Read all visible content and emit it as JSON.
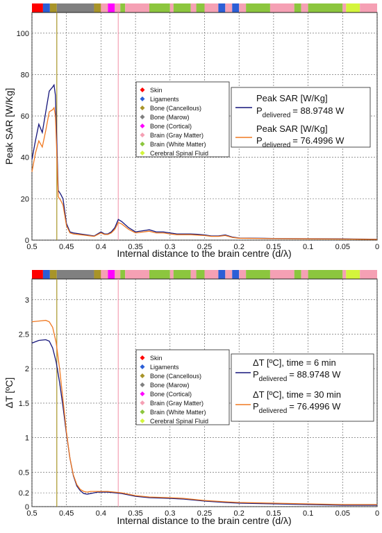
{
  "tissue_colors": {
    "skin": "#ff0000",
    "ligaments": "#2b5ed6",
    "bone_cancellous": "#a89428",
    "bone_marow": "#808080",
    "bone_cortical": "#ff00ff",
    "brain_gray": "#f5a0b4",
    "brain_white": "#8cc63e",
    "csf": "#d4f53c"
  },
  "series_colors": {
    "blue": "#14147a",
    "orange": "#f07820"
  },
  "chart_data": [
    {
      "type": "line",
      "ylabel": "Peak SAR [W/Kg]",
      "xlabel": "Internal distance to the brain centre (d/λ)",
      "xlim": [
        0.5,
        0
      ],
      "ylim": [
        0,
        110
      ],
      "x_reversed": true,
      "xticks": [
        "0.5",
        "0.45",
        "0.4",
        "0.35",
        "0.3",
        "0.25",
        "0.2",
        "0.15",
        "0.1",
        "0.05",
        "0"
      ],
      "yticks": [
        "0",
        "20",
        "40",
        "60",
        "80",
        "100"
      ],
      "ytick_values": [
        0,
        20,
        40,
        60,
        80,
        100
      ],
      "grid": true,
      "vlines": [
        {
          "x": 0.464,
          "color": "#a89428"
        },
        {
          "x": 0.375,
          "color": "#f5a0b4"
        }
      ],
      "tissue_bar": [
        {
          "from": 0.5,
          "to": 0.484,
          "tissue": "skin"
        },
        {
          "from": 0.484,
          "to": 0.474,
          "tissue": "ligaments"
        },
        {
          "from": 0.474,
          "to": 0.464,
          "tissue": "bone_cancellous"
        },
        {
          "from": 0.464,
          "to": 0.41,
          "tissue": "bone_marow"
        },
        {
          "from": 0.41,
          "to": 0.4,
          "tissue": "bone_cancellous"
        },
        {
          "from": 0.4,
          "to": 0.39,
          "tissue": "brain_gray"
        },
        {
          "from": 0.39,
          "to": 0.38,
          "tissue": "bone_cortical"
        },
        {
          "from": 0.38,
          "to": 0.372,
          "tissue": "brain_gray"
        },
        {
          "from": 0.372,
          "to": 0.365,
          "tissue": "brain_white"
        },
        {
          "from": 0.365,
          "to": 0.33,
          "tissue": "brain_gray"
        },
        {
          "from": 0.33,
          "to": 0.3,
          "tissue": "brain_white"
        },
        {
          "from": 0.3,
          "to": 0.295,
          "tissue": "brain_gray"
        },
        {
          "from": 0.295,
          "to": 0.27,
          "tissue": "brain_white"
        },
        {
          "from": 0.27,
          "to": 0.262,
          "tissue": "brain_gray"
        },
        {
          "from": 0.262,
          "to": 0.25,
          "tissue": "brain_white"
        },
        {
          "from": 0.25,
          "to": 0.23,
          "tissue": "brain_gray"
        },
        {
          "from": 0.23,
          "to": 0.22,
          "tissue": "ligaments"
        },
        {
          "from": 0.22,
          "to": 0.21,
          "tissue": "brain_gray"
        },
        {
          "from": 0.21,
          "to": 0.2,
          "tissue": "ligaments"
        },
        {
          "from": 0.2,
          "to": 0.19,
          "tissue": "brain_gray"
        },
        {
          "from": 0.19,
          "to": 0.155,
          "tissue": "brain_white"
        },
        {
          "from": 0.155,
          "to": 0.12,
          "tissue": "brain_gray"
        },
        {
          "from": 0.12,
          "to": 0.11,
          "tissue": "brain_white"
        },
        {
          "from": 0.11,
          "to": 0.1,
          "tissue": "brain_gray"
        },
        {
          "from": 0.1,
          "to": 0.05,
          "tissue": "brain_white"
        },
        {
          "from": 0.05,
          "to": 0.045,
          "tissue": "brain_gray"
        },
        {
          "from": 0.045,
          "to": 0.025,
          "tissue": "csf"
        },
        {
          "from": 0.025,
          "to": 0,
          "tissue": "brain_gray"
        }
      ],
      "tissue_legend": [
        "Skin",
        "Ligaments",
        "Bone (Cancellous)",
        "Bone (Marow)",
        "Bone (Cortical)",
        "Brain (Gray Matter)",
        "Brain (White Matter)",
        "Cerebral Spinal Fluid"
      ],
      "series": [
        {
          "title": "Peak SAR [W/Kg]",
          "p_label": "P",
          "p_sub": "delivered",
          "p_value": "= 88.9748 W",
          "color_key": "blue",
          "x": [
            0.5,
            0.495,
            0.49,
            0.485,
            0.48,
            0.475,
            0.47,
            0.468,
            0.466,
            0.464,
            0.462,
            0.46,
            0.458,
            0.455,
            0.45,
            0.445,
            0.44,
            0.43,
            0.42,
            0.41,
            0.4,
            0.395,
            0.39,
            0.385,
            0.38,
            0.375,
            0.37,
            0.36,
            0.35,
            0.34,
            0.33,
            0.32,
            0.31,
            0.3,
            0.29,
            0.28,
            0.27,
            0.26,
            0.25,
            0.24,
            0.23,
            0.22,
            0.21,
            0.2,
            0.15,
            0.1,
            0.05,
            0.02,
            0
          ],
          "y": [
            39,
            48,
            56,
            52,
            62,
            72,
            74,
            75,
            70,
            48,
            24,
            23,
            22,
            20,
            8,
            4,
            3.5,
            3,
            2.5,
            2,
            4,
            3,
            3,
            4,
            6,
            10,
            9,
            6,
            4,
            4.5,
            5,
            4,
            4,
            3.5,
            3,
            3,
            3,
            2.8,
            2.5,
            2,
            2,
            2.5,
            1.5,
            1,
            0.8,
            0.7,
            0.6,
            0.5,
            0.4
          ]
        },
        {
          "title": "Peak SAR [W/Kg]",
          "p_label": "P",
          "p_sub": "delivered",
          "p_value": "= 76.4996 W",
          "color_key": "orange",
          "x": [
            0.5,
            0.495,
            0.49,
            0.485,
            0.48,
            0.475,
            0.47,
            0.468,
            0.466,
            0.464,
            0.462,
            0.46,
            0.458,
            0.455,
            0.45,
            0.445,
            0.44,
            0.43,
            0.42,
            0.41,
            0.4,
            0.395,
            0.39,
            0.385,
            0.38,
            0.375,
            0.37,
            0.36,
            0.35,
            0.34,
            0.33,
            0.32,
            0.31,
            0.3,
            0.29,
            0.28,
            0.27,
            0.26,
            0.25,
            0.24,
            0.23,
            0.22,
            0.21,
            0.2,
            0.15,
            0.1,
            0.05,
            0.02,
            0
          ],
          "y": [
            33,
            42,
            48,
            45,
            53,
            62,
            63,
            64,
            60,
            42,
            21,
            20,
            19,
            17,
            7,
            3.5,
            3,
            2.6,
            2.2,
            1.8,
            3.5,
            2.7,
            2.7,
            3.5,
            5.2,
            8.5,
            7.8,
            5.2,
            3.5,
            3.9,
            4.3,
            3.5,
            3.5,
            3,
            2.6,
            2.6,
            2.6,
            2.4,
            2.2,
            1.8,
            1.8,
            2.2,
            1.3,
            0.9,
            0.7,
            0.6,
            0.5,
            0.4,
            0.35
          ]
        }
      ]
    },
    {
      "type": "line",
      "ylabel": "ΔT [ºC]",
      "xlabel": "Internal distance to the brain centre (d/λ)",
      "xlim": [
        0.5,
        0
      ],
      "ylim": [
        0,
        3.3
      ],
      "x_reversed": true,
      "xticks": [
        "0.5",
        "0.45",
        "0.4",
        "0.35",
        "0.3",
        "0.25",
        "0.2",
        "0.15",
        "0.1",
        "0.05",
        "0"
      ],
      "yticks": [
        "0",
        "0.2",
        "0.5",
        "1",
        "1.5",
        "2",
        "2.5",
        "3"
      ],
      "ytick_values": [
        0,
        0.2,
        0.5,
        1,
        1.5,
        2,
        2.5,
        3
      ],
      "grid": true,
      "vlines": [
        {
          "x": 0.464,
          "color": "#a89428"
        },
        {
          "x": 0.375,
          "color": "#f5a0b4"
        }
      ],
      "tissue_legend": [
        "Skin",
        "Ligaments",
        "Bone (Cancellous)",
        "Bone (Marow)",
        "Bone (Cortical)",
        "Brain (Gray Matter)",
        "Brain (White Matter)",
        "Cerebral Spinal Fluid"
      ],
      "series": [
        {
          "title": "ΔT [ºC], time = 6 min",
          "p_label": "P",
          "p_sub": "delivered",
          "p_value": "= 88.9748 W",
          "color_key": "blue",
          "x": [
            0.5,
            0.49,
            0.48,
            0.475,
            0.47,
            0.465,
            0.46,
            0.455,
            0.45,
            0.445,
            0.44,
            0.435,
            0.43,
            0.425,
            0.42,
            0.415,
            0.41,
            0.405,
            0.4,
            0.39,
            0.38,
            0.37,
            0.36,
            0.35,
            0.33,
            0.3,
            0.28,
            0.25,
            0.22,
            0.2,
            0.15,
            0.1,
            0.05,
            0
          ],
          "y": [
            2.37,
            2.41,
            2.42,
            2.4,
            2.3,
            2.1,
            1.8,
            1.45,
            1.05,
            0.7,
            0.45,
            0.3,
            0.23,
            0.19,
            0.18,
            0.19,
            0.2,
            0.21,
            0.21,
            0.21,
            0.2,
            0.19,
            0.17,
            0.15,
            0.13,
            0.12,
            0.11,
            0.08,
            0.06,
            0.05,
            0.04,
            0.03,
            0.02,
            0.02
          ]
        },
        {
          "title": "ΔT [ºC], time = 30 min",
          "p_label": "P",
          "p_sub": "delivered",
          "p_value": "= 76.4996 W",
          "color_key": "orange",
          "x": [
            0.5,
            0.49,
            0.48,
            0.475,
            0.47,
            0.465,
            0.46,
            0.455,
            0.45,
            0.445,
            0.44,
            0.435,
            0.43,
            0.425,
            0.42,
            0.415,
            0.41,
            0.405,
            0.4,
            0.39,
            0.38,
            0.37,
            0.36,
            0.35,
            0.33,
            0.3,
            0.28,
            0.25,
            0.22,
            0.2,
            0.15,
            0.1,
            0.05,
            0
          ],
          "y": [
            2.68,
            2.69,
            2.7,
            2.68,
            2.6,
            2.38,
            2.0,
            1.55,
            1.08,
            0.7,
            0.46,
            0.32,
            0.25,
            0.22,
            0.21,
            0.22,
            0.22,
            0.22,
            0.22,
            0.22,
            0.21,
            0.2,
            0.18,
            0.16,
            0.14,
            0.13,
            0.12,
            0.09,
            0.07,
            0.06,
            0.05,
            0.04,
            0.03,
            0.03
          ]
        }
      ]
    }
  ]
}
